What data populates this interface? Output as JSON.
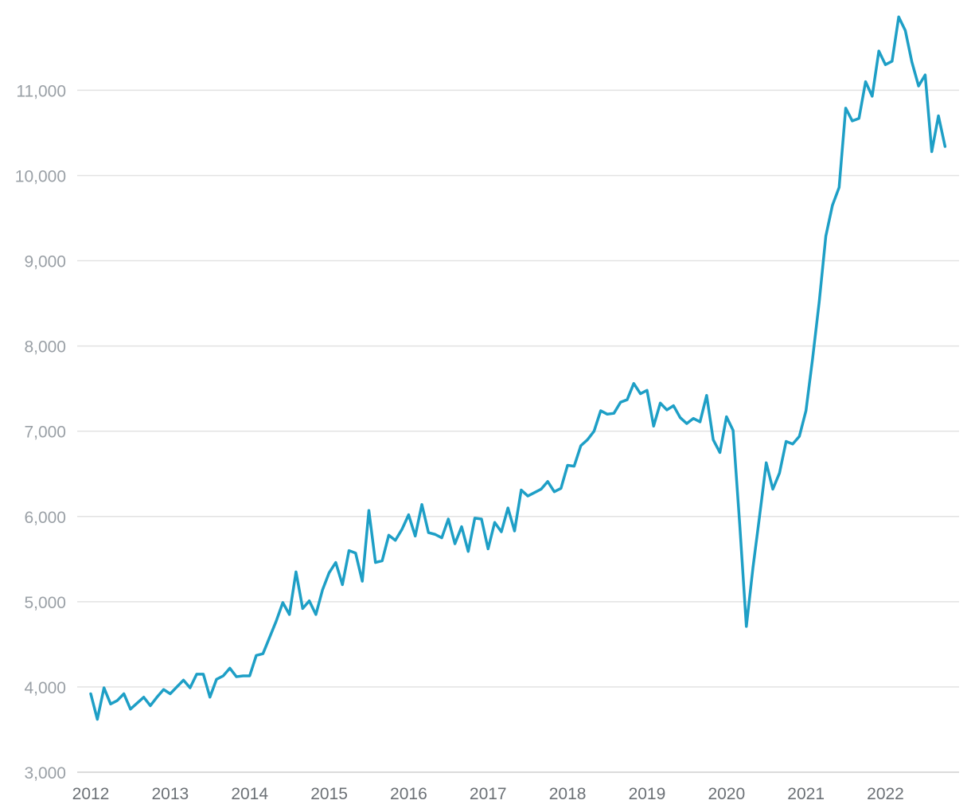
{
  "chart_data": {
    "type": "line",
    "title": "",
    "xlabel": "",
    "ylabel": "",
    "grid": true,
    "legend": "none",
    "color": "#1e9fc6",
    "xlim": [
      2012,
      2022.8
    ],
    "ylim": [
      3000,
      11900
    ],
    "y_ticks": [
      3000,
      4000,
      5000,
      6000,
      7000,
      8000,
      9000,
      10000,
      11000
    ],
    "y_tick_labels": [
      "3,000",
      "4,000",
      "5,000",
      "6,000",
      "7,000",
      "8,000",
      "9,000",
      "10,000",
      "11,000"
    ],
    "x_ticks": [
      2012,
      2013,
      2014,
      2015,
      2016,
      2017,
      2018,
      2019,
      2020,
      2021,
      2022
    ],
    "x_tick_labels": [
      "2012",
      "2013",
      "2014",
      "2015",
      "2016",
      "2017",
      "2018",
      "2019",
      "2020",
      "2021",
      "2022"
    ],
    "series": [
      {
        "x": [
          2012.0,
          2012.083,
          2012.167,
          2012.25,
          2012.333,
          2012.417,
          2012.5,
          2012.583,
          2012.667,
          2012.75,
          2012.833,
          2012.917,
          2013.0,
          2013.083,
          2013.167,
          2013.25,
          2013.333,
          2013.417,
          2013.5,
          2013.583,
          2013.667,
          2013.75,
          2013.833,
          2013.917,
          2014.0,
          2014.083,
          2014.167,
          2014.25,
          2014.333,
          2014.417,
          2014.5,
          2014.583,
          2014.667,
          2014.75,
          2014.833,
          2014.917,
          2015.0,
          2015.083,
          2015.167,
          2015.25,
          2015.333,
          2015.417,
          2015.5,
          2015.583,
          2015.667,
          2015.75,
          2015.833,
          2015.917,
          2016.0,
          2016.083,
          2016.167,
          2016.25,
          2016.333,
          2016.417,
          2016.5,
          2016.583,
          2016.667,
          2016.75,
          2016.833,
          2016.917,
          2017.0,
          2017.083,
          2017.167,
          2017.25,
          2017.333,
          2017.417,
          2017.5,
          2017.583,
          2017.667,
          2017.75,
          2017.833,
          2017.917,
          2018.0,
          2018.083,
          2018.167,
          2018.25,
          2018.333,
          2018.417,
          2018.5,
          2018.583,
          2018.667,
          2018.75,
          2018.833,
          2018.917,
          2019.0,
          2019.083,
          2019.167,
          2019.25,
          2019.333,
          2019.417,
          2019.5,
          2019.583,
          2019.667,
          2019.75,
          2019.833,
          2019.917,
          2020.0,
          2020.083,
          2020.167,
          2020.25,
          2020.333,
          2020.417,
          2020.5,
          2020.583,
          2020.667,
          2020.75,
          2020.833,
          2020.917,
          2021.0,
          2021.083,
          2021.167,
          2021.25,
          2021.333,
          2021.417,
          2021.5,
          2021.583,
          2021.667,
          2021.75,
          2021.833,
          2021.917,
          2022.0,
          2022.083,
          2022.167,
          2022.25,
          2022.333,
          2022.417,
          2022.5,
          2022.583,
          2022.667,
          2022.75
        ],
        "values": [
          3920,
          3620,
          3990,
          3800,
          3840,
          3920,
          3740,
          3810,
          3880,
          3780,
          3880,
          3970,
          3920,
          4000,
          4080,
          3990,
          4150,
          4150,
          3880,
          4090,
          4130,
          4220,
          4120,
          4130,
          4130,
          4370,
          4390,
          4580,
          4770,
          4990,
          4850,
          5350,
          4920,
          5010,
          4850,
          5140,
          5340,
          5460,
          5200,
          5600,
          5570,
          5240,
          6070,
          5460,
          5480,
          5780,
          5720,
          5850,
          6020,
          5770,
          6140,
          5810,
          5790,
          5750,
          5970,
          5680,
          5880,
          5590,
          5980,
          5970,
          5620,
          5930,
          5820,
          6100,
          5830,
          6310,
          6240,
          6280,
          6320,
          6410,
          6290,
          6330,
          6600,
          6590,
          6830,
          6900,
          7000,
          7240,
          7200,
          7210,
          7340,
          7370,
          7560,
          7440,
          7480,
          7060,
          7330,
          7250,
          7300,
          7160,
          7090,
          7150,
          7110,
          7420,
          6900,
          6750,
          7170,
          7010,
          5900,
          4710,
          5400,
          6010,
          6630,
          6320,
          6510,
          6880,
          6850,
          6940,
          7240,
          7850,
          8520,
          9290,
          9650,
          9860,
          10790,
          10640,
          10670,
          11100,
          10930,
          11460,
          11300,
          11340,
          11860,
          11700,
          11330,
          11050,
          11180,
          10280,
          10700,
          10340
        ]
      }
    ]
  }
}
